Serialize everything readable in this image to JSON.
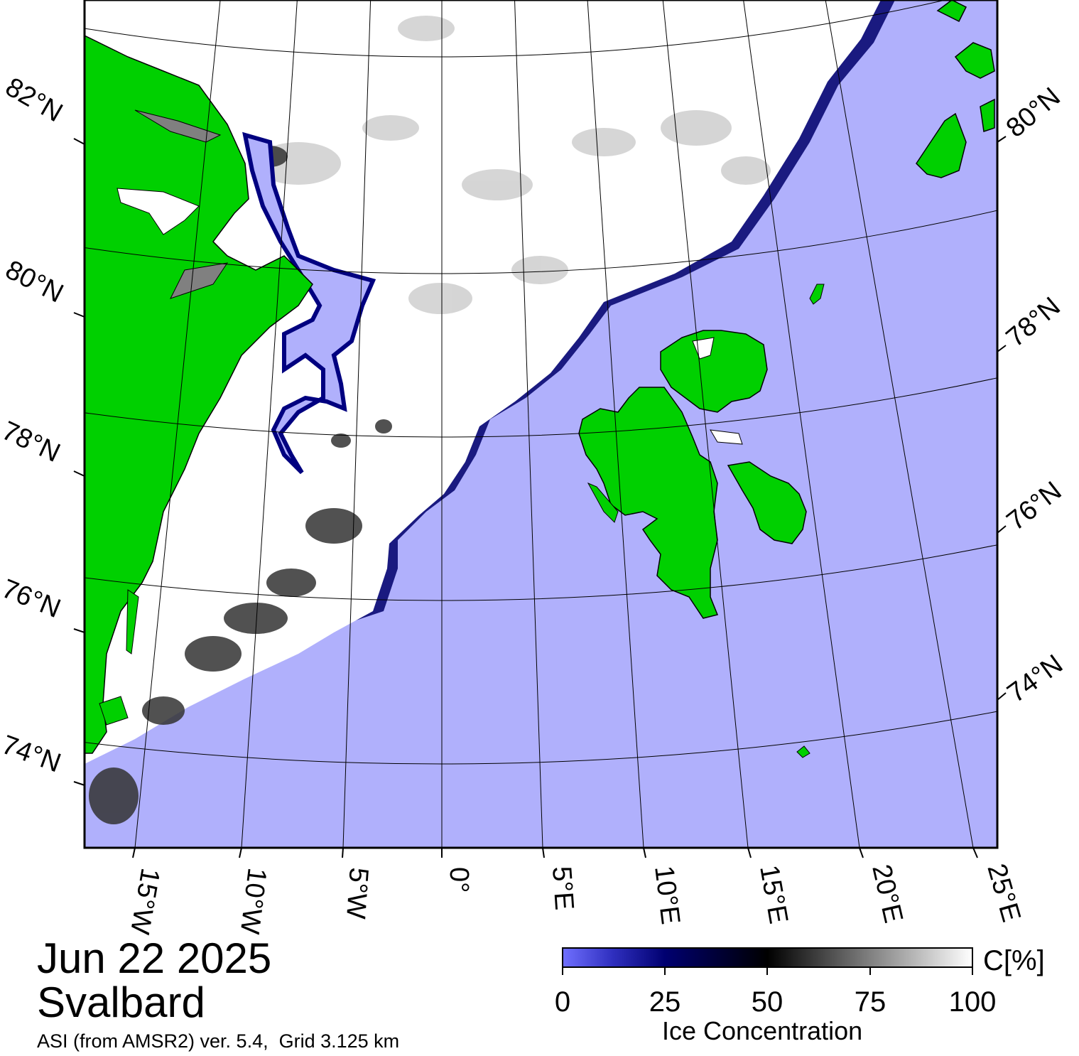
{
  "title": {
    "date": "Jun 22 2025",
    "region": "Svalbard",
    "source": "ASI (from AMSR2) ver. 5.4,  Grid 3.125 km"
  },
  "colors": {
    "open_water": "#b0b0fc",
    "land": "#00d000",
    "ice_full": "#ffffff",
    "ice_mid": "#000000",
    "ice_low": "#000080",
    "ice_min": "#6060ff",
    "coast_line": "#000000",
    "shelf_ice": "#808080"
  },
  "map": {
    "projection": "polar stereographic",
    "latitude_labels_left": [
      "82°N",
      "80°N",
      "78°N",
      "76°N",
      "74°N"
    ],
    "latitude_labels_right": [
      "80°N",
      "78°N",
      "76°N",
      "74°N"
    ],
    "longitude_labels_bottom": [
      "15°W",
      "10°W",
      "5°W",
      "0°",
      "5°E",
      "10°E",
      "15°E",
      "20°E",
      "25°E"
    ],
    "features": [
      "greenland-land",
      "svalbard-land",
      "sea-ice-pack",
      "open-ocean"
    ]
  },
  "colorbar": {
    "title": "Ice Concentration",
    "unit": "C[%]",
    "ticks": [
      "0",
      "25",
      "50",
      "75",
      "100"
    ],
    "range": [
      0,
      100
    ]
  }
}
